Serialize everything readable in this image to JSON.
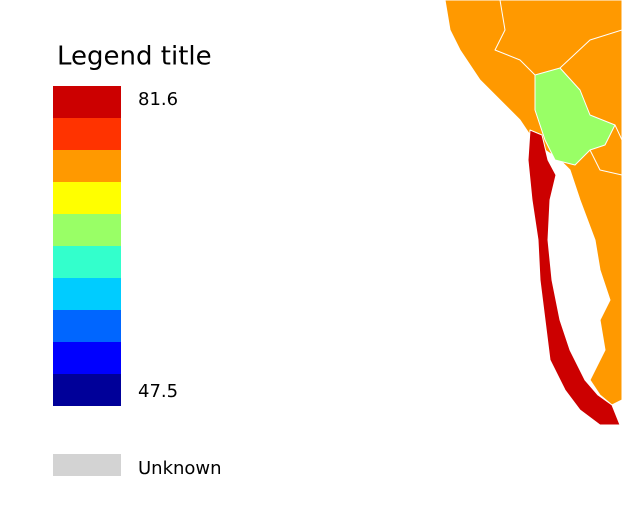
{
  "legend": {
    "title": "Legend title",
    "max": 81.6,
    "min": 47.5,
    "colors": [
      "#cc0000",
      "#ff3300",
      "#ff9900",
      "#ffff00",
      "#99ff66",
      "#33ffcc",
      "#00ccff",
      "#0066ff",
      "#0000ff",
      "#000099"
    ],
    "unknown": {
      "label": "Unknown",
      "color": "#d3d3d3"
    }
  }
}
